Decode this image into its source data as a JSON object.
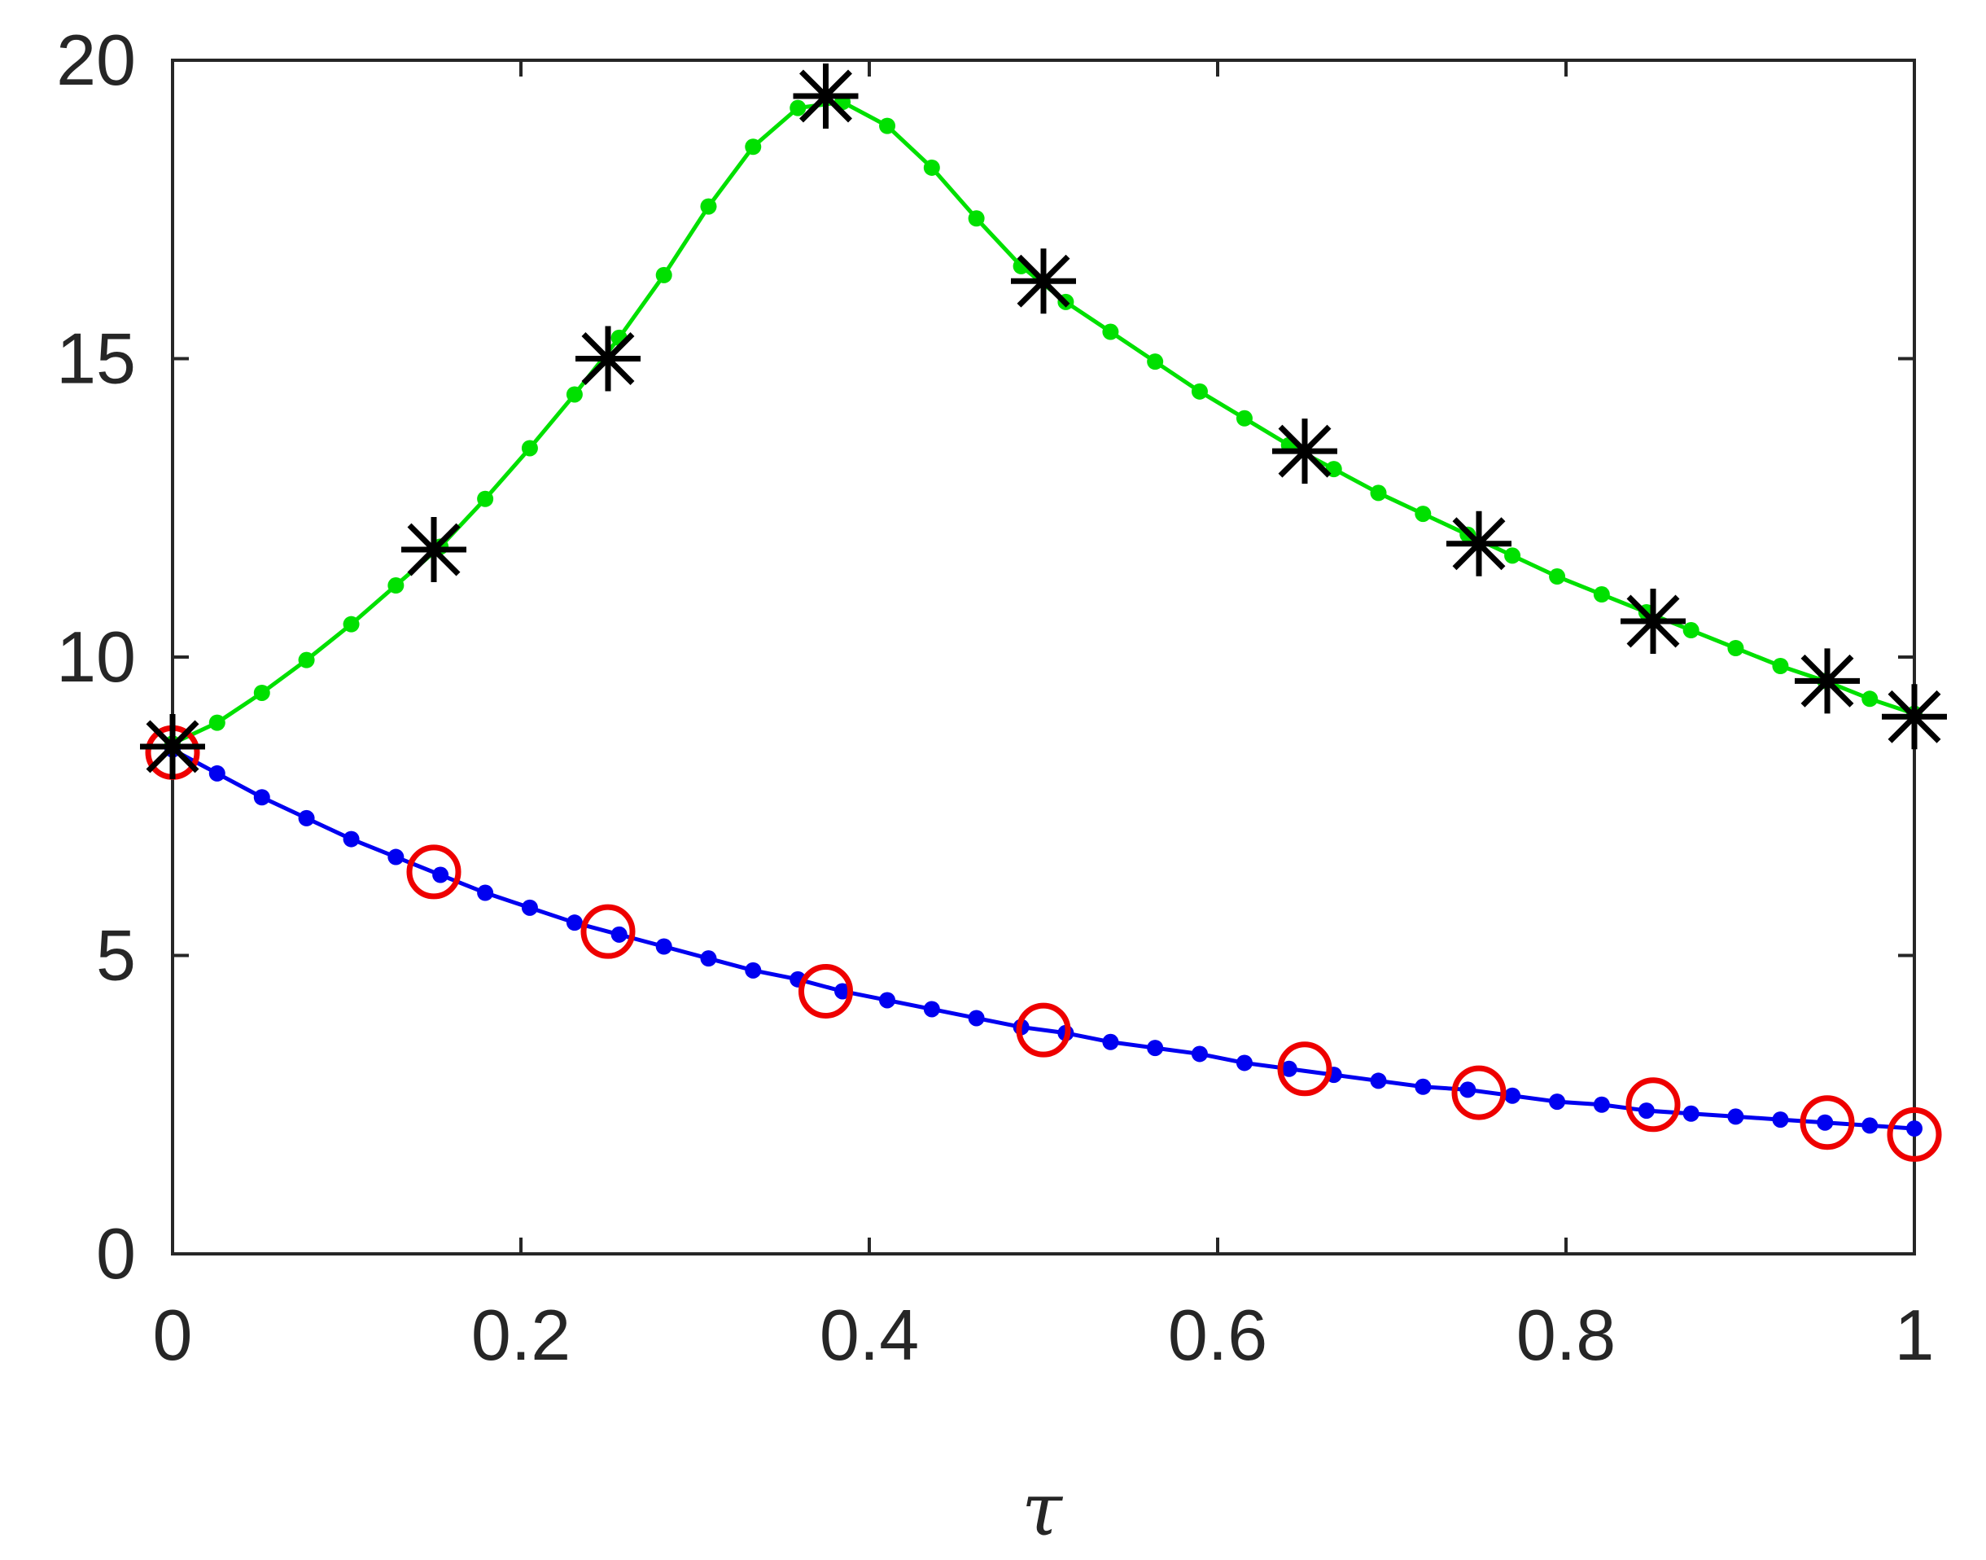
{
  "chart_data": {
    "type": "line",
    "title": "",
    "xlabel": "τ",
    "ylabel": "",
    "xlim": [
      0,
      1
    ],
    "ylim": [
      0,
      20
    ],
    "xticks": [
      0,
      0.2,
      0.4,
      0.6,
      0.8,
      1
    ],
    "xtick_labels": [
      "0",
      "0.2",
      "0.4",
      "0.6",
      "0.8",
      "1"
    ],
    "yticks": [
      0,
      5,
      10,
      15,
      20
    ],
    "ytick_labels": [
      "0",
      "5",
      "10",
      "15",
      "20"
    ],
    "grid": false,
    "legend": "none",
    "series": [
      {
        "style": "line-dots",
        "color": "#00e000",
        "x": [
          0,
          0.0256,
          0.0513,
          0.0769,
          0.1026,
          0.1282,
          0.1538,
          0.1795,
          0.2051,
          0.2308,
          0.2564,
          0.2821,
          0.3077,
          0.3333,
          0.359,
          0.3846,
          0.4103,
          0.4359,
          0.4615,
          0.4872,
          0.5128,
          0.5385,
          0.5641,
          0.5897,
          0.6154,
          0.641,
          0.6667,
          0.6923,
          0.7179,
          0.7436,
          0.7692,
          0.7949,
          0.8205,
          0.8462,
          0.8718,
          0.8974,
          0.9231,
          0.9487,
          0.9744,
          1.0
        ],
        "y": [
          8.55,
          8.9,
          9.4,
          9.95,
          10.55,
          11.2,
          11.85,
          12.65,
          13.5,
          14.4,
          15.35,
          16.4,
          17.55,
          18.55,
          19.2,
          19.3,
          18.9,
          18.2,
          17.35,
          16.55,
          15.95,
          15.45,
          14.95,
          14.45,
          14.0,
          13.55,
          13.15,
          12.75,
          12.4,
          12.05,
          11.7,
          11.35,
          11.05,
          10.75,
          10.45,
          10.15,
          9.85,
          9.6,
          9.3,
          9.05
        ]
      },
      {
        "style": "line-dots",
        "color": "#0000f0",
        "x": [
          0,
          0.0256,
          0.0513,
          0.0769,
          0.1026,
          0.1282,
          0.1538,
          0.1795,
          0.2051,
          0.2308,
          0.2564,
          0.2821,
          0.3077,
          0.3333,
          0.359,
          0.3846,
          0.4103,
          0.4359,
          0.4615,
          0.4872,
          0.5128,
          0.5385,
          0.5641,
          0.5897,
          0.6154,
          0.641,
          0.6667,
          0.6923,
          0.7179,
          0.7436,
          0.7692,
          0.7949,
          0.8205,
          0.8462,
          0.8718,
          0.8974,
          0.9231,
          0.9487,
          0.9744,
          1.0
        ],
        "y": [
          8.45,
          8.05,
          7.65,
          7.3,
          6.95,
          6.65,
          6.35,
          6.05,
          5.8,
          5.55,
          5.35,
          5.15,
          4.95,
          4.75,
          4.6,
          4.4,
          4.25,
          4.1,
          3.95,
          3.8,
          3.7,
          3.55,
          3.45,
          3.35,
          3.2,
          3.1,
          3.0,
          2.9,
          2.8,
          2.75,
          2.65,
          2.55,
          2.5,
          2.4,
          2.35,
          2.3,
          2.25,
          2.2,
          2.15,
          2.1
        ]
      },
      {
        "style": "asterisk-markers",
        "color": "#000000",
        "x": [
          0.0,
          0.15,
          0.25,
          0.375,
          0.5,
          0.65,
          0.75,
          0.85,
          0.95,
          1.0
        ],
        "y": [
          8.5,
          11.8,
          15.0,
          19.4,
          16.3,
          13.45,
          11.9,
          10.6,
          9.6,
          9.0
        ]
      },
      {
        "style": "circle-markers",
        "color": "#ee0000",
        "x": [
          0.0,
          0.15,
          0.25,
          0.375,
          0.5,
          0.65,
          0.75,
          0.85,
          0.95,
          1.0
        ],
        "y": [
          8.4,
          6.4,
          5.4,
          4.4,
          3.75,
          3.1,
          2.7,
          2.5,
          2.2,
          2.0
        ]
      }
    ]
  }
}
